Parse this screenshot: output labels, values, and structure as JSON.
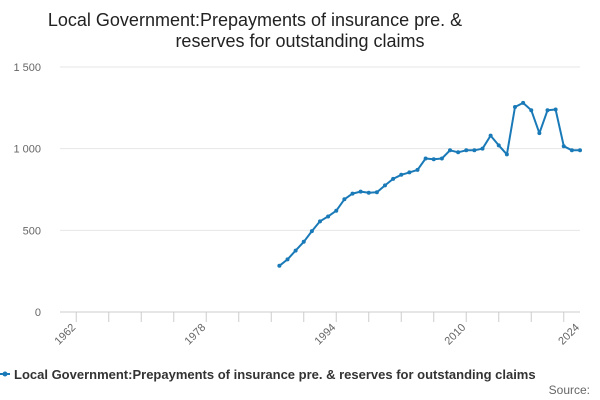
{
  "chart_data": {
    "type": "line",
    "title_lines": [
      "Local Government:Prepayments of insurance pre. &",
      "reserves for outstanding claims"
    ],
    "xlabel": "",
    "ylabel": "",
    "xlim": [
      1960,
      2024
    ],
    "ylim": [
      0,
      1500
    ],
    "x_tick_labels": [
      "1962",
      "1978",
      "1994",
      "2010",
      "2024"
    ],
    "x_tick_values": [
      1962,
      1978,
      1994,
      2010,
      2024
    ],
    "y_tick_labels": [
      "0",
      "500",
      "1 000",
      "1 500"
    ],
    "y_tick_values": [
      0,
      500,
      1000,
      1500
    ],
    "series": [
      {
        "name": "Local Government:Prepayments of insurance pre. & reserves for outstanding claims",
        "color": "#1a7ab8",
        "x": [
          1987,
          1988,
          1989,
          1990,
          1991,
          1992,
          1993,
          1994,
          1995,
          1996,
          1997,
          1998,
          1999,
          2000,
          2001,
          2002,
          2003,
          2004,
          2005,
          2006,
          2007,
          2008,
          2009,
          2010,
          2011,
          2012,
          2013,
          2014,
          2015,
          2016,
          2017,
          2018,
          2019,
          2020,
          2021,
          2022,
          2023,
          2024
        ],
        "values": [
          283,
          322,
          376,
          430,
          495,
          555,
          585,
          620,
          690,
          725,
          737,
          730,
          733,
          775,
          815,
          840,
          855,
          870,
          940,
          935,
          940,
          990,
          978,
          990,
          990,
          1000,
          1080,
          1020,
          965,
          1255,
          1280,
          1235,
          1095,
          1235,
          1240,
          1015,
          990,
          990
        ]
      }
    ],
    "legend": "bottom",
    "source_label": "Source:"
  }
}
